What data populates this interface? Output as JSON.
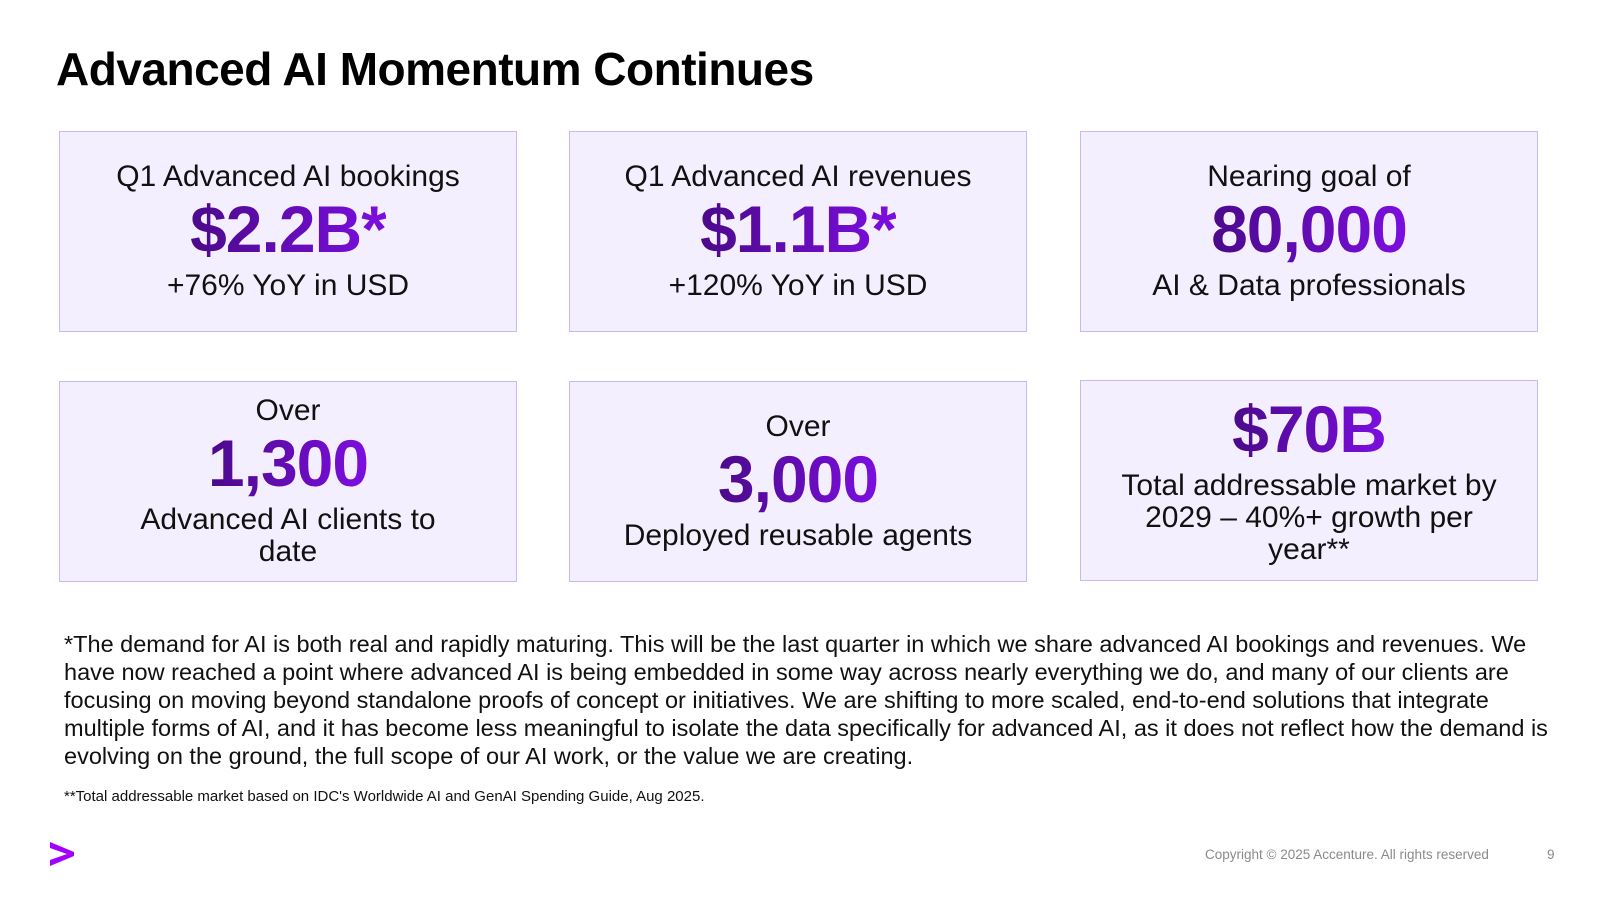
{
  "slide": {
    "title": "Advanced AI Momentum Continues",
    "cards": [
      {
        "top": "Q1 Advanced AI bookings",
        "value": "$2.2B*",
        "bottom": "+76% YoY in USD"
      },
      {
        "top": "Q1 Advanced AI revenues",
        "value": "$1.1B*",
        "bottom": "+120% YoY in USD"
      },
      {
        "top": "Nearing goal of",
        "value": "80,000",
        "bottom": "AI & Data professionals"
      },
      {
        "top": "Over",
        "value": "1,300",
        "bottom": "Advanced AI clients to date"
      },
      {
        "top": "Over",
        "value": "3,000",
        "bottom": "Deployed reusable agents"
      },
      {
        "value": "$70B",
        "bottom": "Total addressable market by 2029 – 40%+ growth per year**"
      }
    ],
    "footnote": "*The demand for AI is both real and rapidly maturing. This will be the last quarter in which we share advanced AI bookings and revenues. We have now reached a point where advanced AI is being embedded in some way across nearly everything we do, and many of our clients are focusing on moving beyond standalone proofs of concept or initiatives. We are shifting to more scaled, end-to-end solutions that integrate multiple forms of AI, and it has become less meaningful to isolate the data specifically for advanced AI, as it does not reflect how the demand is evolving on the ground, the full scope of our AI work, or the value we are creating.",
    "footnote_source": "**Total addressable market based on IDC's Worldwide AI and GenAI Spending Guide, Aug 2025.",
    "copyright": "Copyright © 2025 Accenture. All rights reserved",
    "page_number": "9"
  },
  "colors": {
    "card_background": "#f4effe",
    "card_border": "#c9b8f5",
    "accent_dark": "#4b0a8a",
    "accent_bright": "#7c0ee0",
    "logo": "#a100ff"
  },
  "icons": {
    "logo": "accenture-greater-than-logo-icon"
  }
}
